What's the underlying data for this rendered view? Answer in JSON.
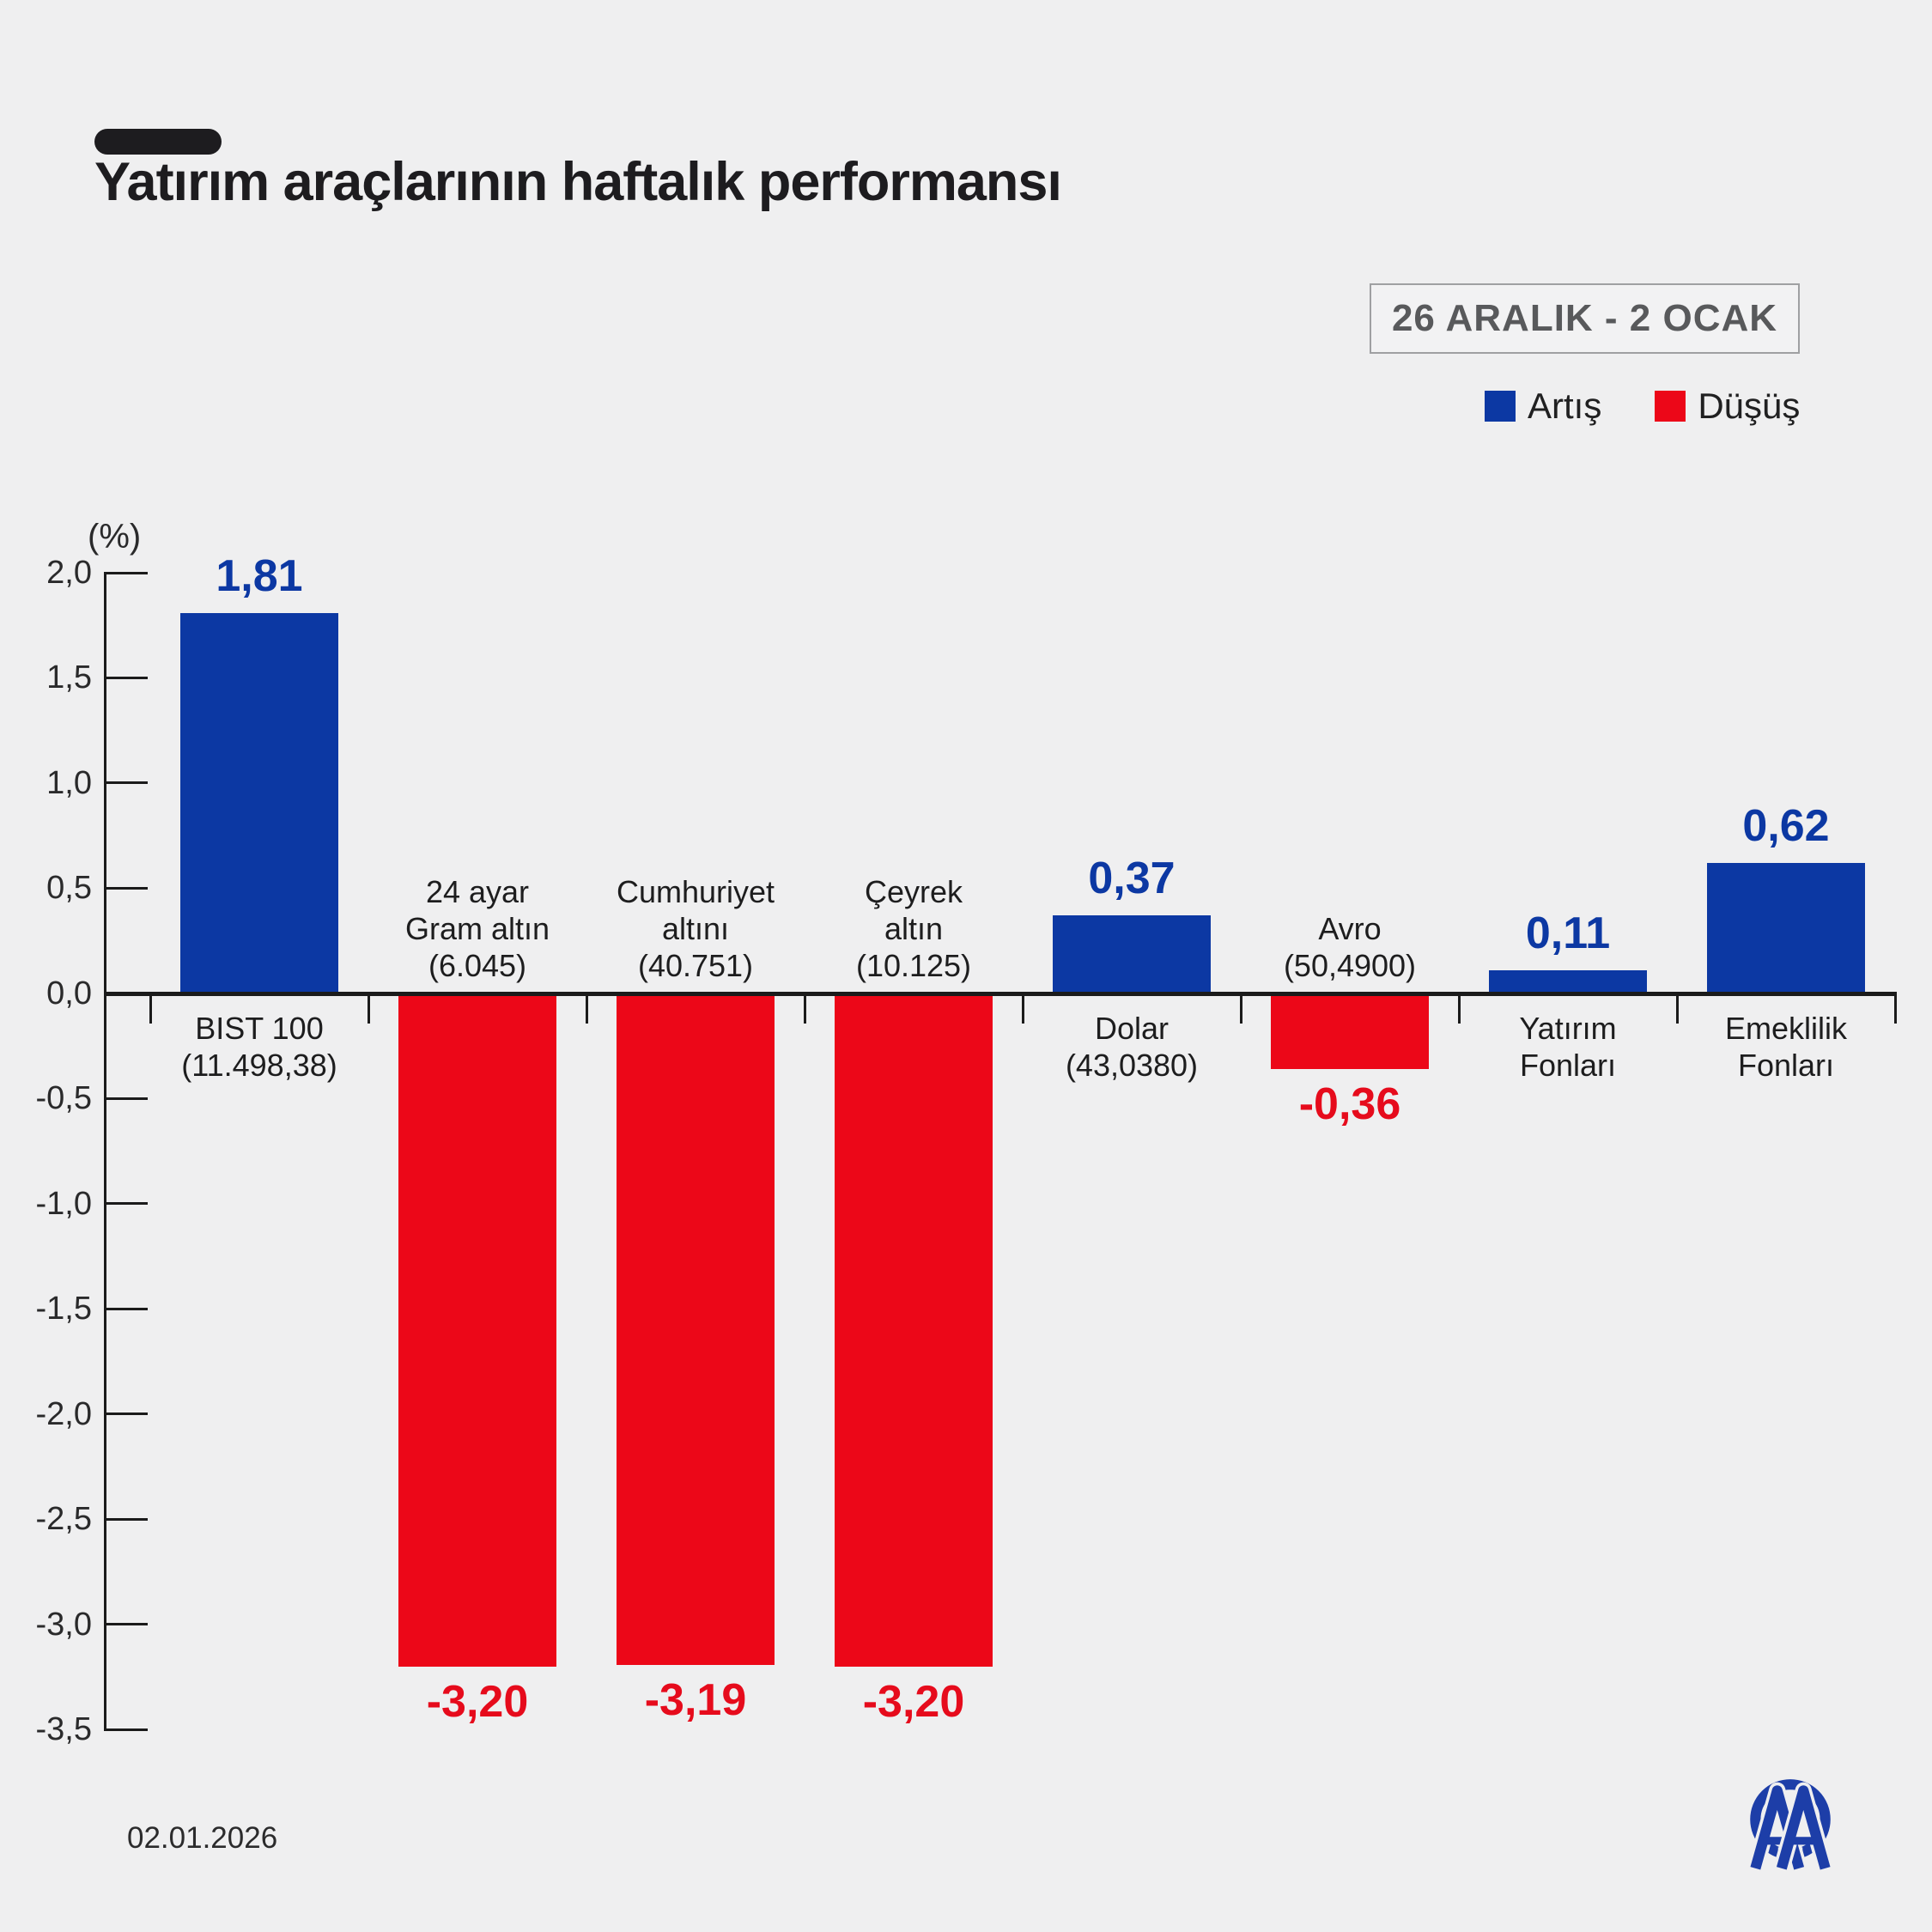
{
  "title": "Yatırım araçlarının haftalık performansı",
  "period_badge": "26 ARALIK - 2 OCAK",
  "legend": {
    "increase_label": "Artış",
    "decrease_label": "Düşüş"
  },
  "footer": {
    "date": "02.01.2026",
    "logo": "anadolu-ajansi-aa-logo"
  },
  "colors": {
    "background": "#efeff0",
    "increase": "#0c38a3",
    "decrease": "#ec0718",
    "value_label_increase": "#0c38a3",
    "value_label_decrease": "#e60b1c",
    "axis": "#1b1b1b",
    "badge_text": "#58595b",
    "logo_blue": "#1d3ea8"
  },
  "chart_data": {
    "type": "bar",
    "title": "Yatırım araçlarının haftalık performansı",
    "unit_label": "(%)",
    "ylim": [
      -3.5,
      2.0
    ],
    "ytick_step": 0.5,
    "ytick_labels": [
      "2,0",
      "1,5",
      "1,0",
      "0,5",
      "0,0",
      "-0,5",
      "-1,0",
      "-1,5",
      "-2,0",
      "-2,5",
      "-3,0",
      "-3,5"
    ],
    "grid": false,
    "legend_position": "top-right",
    "categories": [
      {
        "name": "BIST 100",
        "label_lines": [
          "BIST 100",
          "(11.498,38)"
        ],
        "value": 1.81,
        "value_label": "1,81",
        "direction": "increase"
      },
      {
        "name": "24 ayar Gram altın",
        "label_lines": [
          "24 ayar",
          "Gram altın",
          "(6.045)"
        ],
        "value": -3.2,
        "value_label": "-3,20",
        "direction": "decrease"
      },
      {
        "name": "Cumhuriyet altını",
        "label_lines": [
          "Cumhuriyet",
          "altını",
          "(40.751)"
        ],
        "value": -3.19,
        "value_label": "-3,19",
        "direction": "decrease"
      },
      {
        "name": "Çeyrek altın",
        "label_lines": [
          "Çeyrek",
          "altın",
          "(10.125)"
        ],
        "value": -3.2,
        "value_label": "-3,20",
        "direction": "decrease"
      },
      {
        "name": "Dolar",
        "label_lines": [
          "Dolar",
          "(43,0380)"
        ],
        "value": 0.37,
        "value_label": "0,37",
        "direction": "increase"
      },
      {
        "name": "Avro",
        "label_lines": [
          "Avro",
          "(50,4900)"
        ],
        "value": -0.36,
        "value_label": "-0,36",
        "direction": "decrease"
      },
      {
        "name": "Yatırım Fonları",
        "label_lines": [
          "Yatırım",
          "Fonları"
        ],
        "value": 0.11,
        "value_label": "0,11",
        "direction": "increase"
      },
      {
        "name": "Emeklilik Fonları",
        "label_lines": [
          "Emeklilik",
          "Fonları"
        ],
        "value": 0.62,
        "value_label": "0,62",
        "direction": "increase"
      }
    ]
  }
}
